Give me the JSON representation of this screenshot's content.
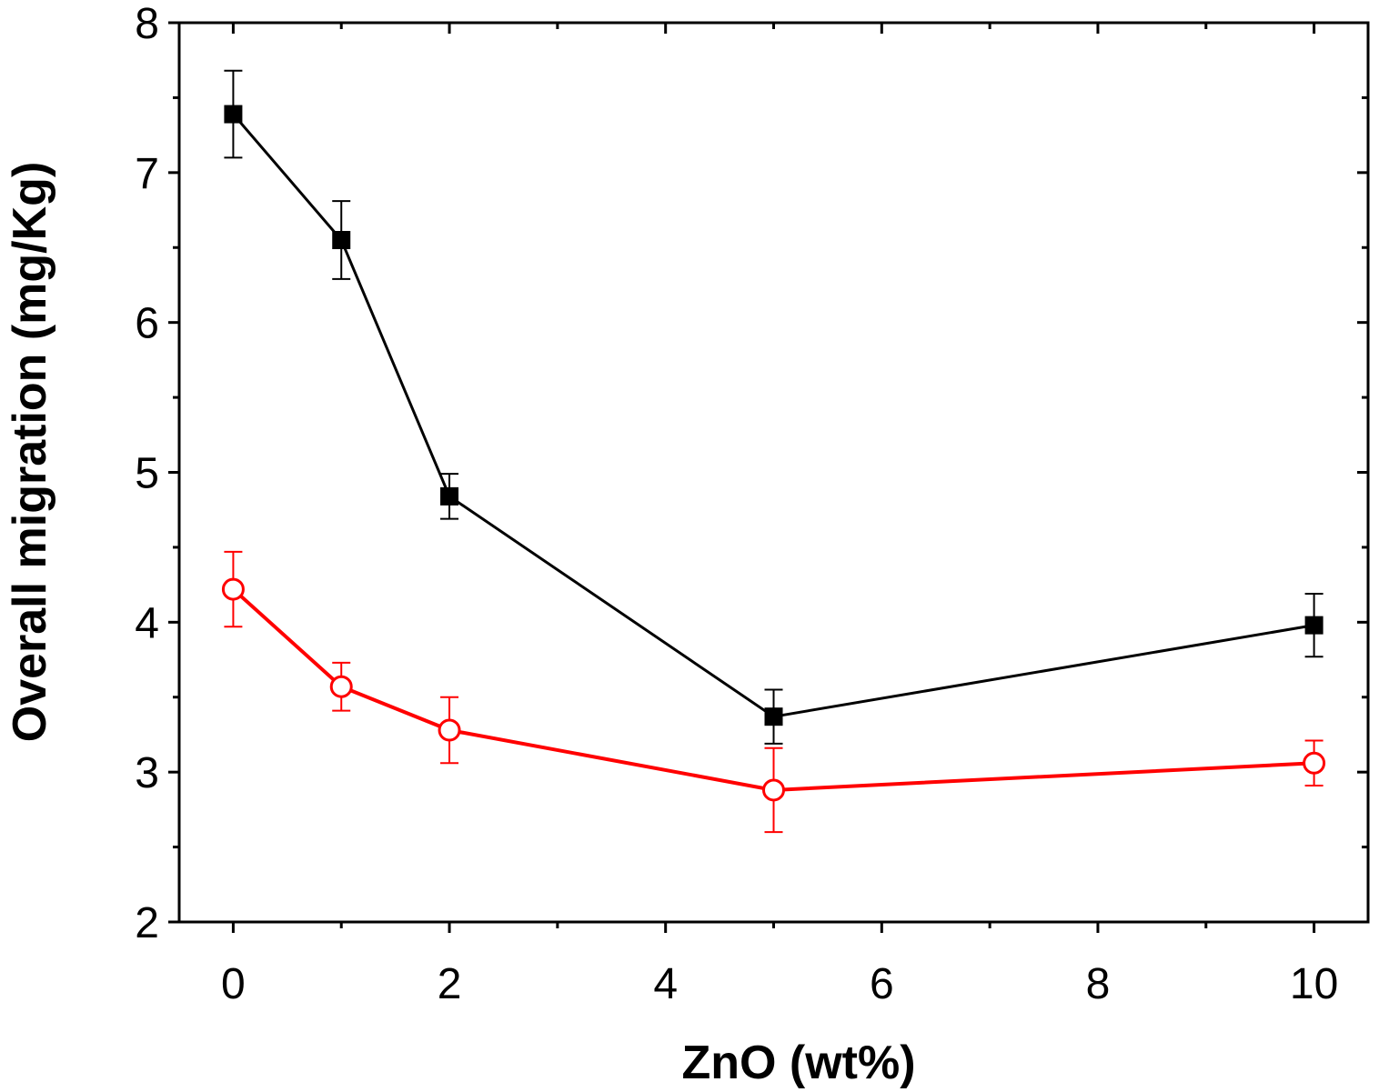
{
  "chart_data": {
    "type": "line",
    "title": "",
    "xlabel": "ZnO (wt%)",
    "ylabel": "Overall migration (mg/Kg)",
    "xlim": [
      -0.5,
      10.5
    ],
    "ylim": [
      2,
      8
    ],
    "x_major_ticks": [
      0,
      2,
      4,
      6,
      8,
      10
    ],
    "x_tick_labels": [
      "0",
      "2",
      "4",
      "6",
      "8",
      "10"
    ],
    "x_minor_ticks": [
      1,
      3,
      5,
      7,
      9
    ],
    "y_major_ticks": [
      2,
      3,
      4,
      5,
      6,
      7,
      8
    ],
    "y_tick_labels": [
      "2",
      "3",
      "4",
      "5",
      "6",
      "7",
      "8"
    ],
    "y_minor_ticks": [
      2.5,
      3.5,
      4.5,
      5.5,
      6.5,
      7.5
    ],
    "grid": false,
    "series": [
      {
        "name": "series-black-squares",
        "color": "#000000",
        "marker": "filled-square",
        "x": [
          0,
          1,
          2,
          5,
          10
        ],
        "values": [
          7.39,
          6.55,
          4.84,
          3.37,
          3.98
        ],
        "errors": [
          0.29,
          0.26,
          0.15,
          0.18,
          0.21
        ]
      },
      {
        "name": "series-red-circles",
        "color": "#ff0000",
        "marker": "open-circle",
        "x": [
          0,
          1,
          2,
          5,
          10
        ],
        "values": [
          4.22,
          3.57,
          3.28,
          2.88,
          3.06
        ],
        "errors": [
          0.25,
          0.16,
          0.22,
          0.28,
          0.15
        ]
      }
    ]
  }
}
